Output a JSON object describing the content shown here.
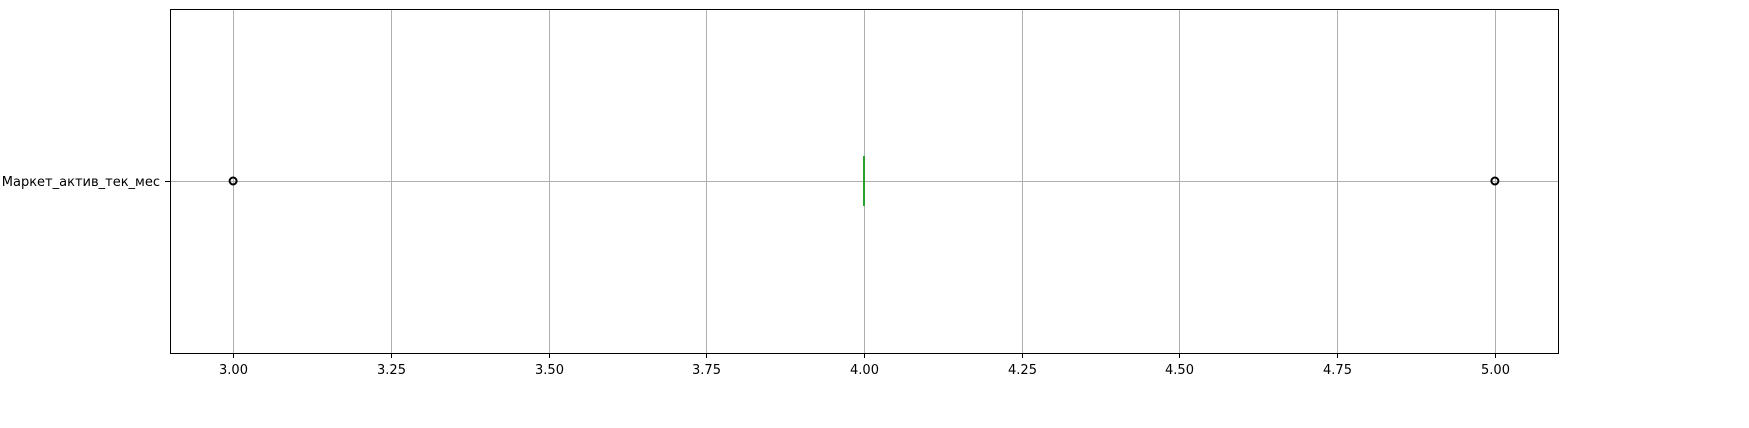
{
  "chart_data": {
    "type": "boxplot",
    "orientation": "horizontal",
    "title": "",
    "xlabel": "",
    "ylabel": "",
    "xlim": [
      2.9,
      5.1
    ],
    "xticks": [
      3.0,
      3.25,
      3.5,
      3.75,
      4.0,
      4.25,
      4.5,
      4.75,
      5.0
    ],
    "xtick_labels": [
      "3.00",
      "3.25",
      "3.50",
      "3.75",
      "4.00",
      "4.25",
      "4.50",
      "4.75",
      "5.00"
    ],
    "grid": true,
    "series": [
      {
        "name": "Маркет_актив_тек_мес",
        "min": 4.0,
        "q1": 4.0,
        "median": 4.0,
        "q3": 4.0,
        "max": 4.0,
        "outliers": [
          3.0,
          5.0
        ]
      }
    ]
  },
  "colors": {
    "grid": "#b0b0b0",
    "box": "#1f77b4",
    "median": "#2ca02c",
    "outlier_edge": "#000000",
    "axes": "#000000"
  }
}
